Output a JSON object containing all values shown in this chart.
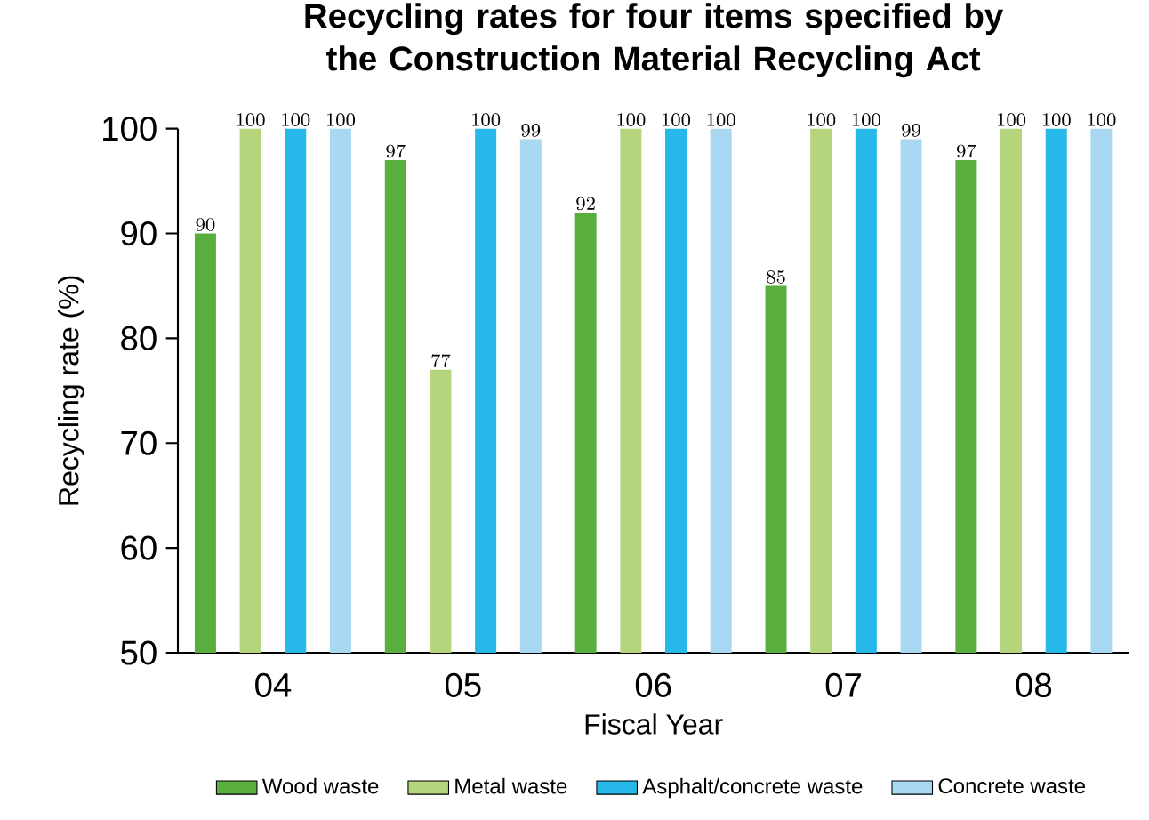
{
  "chart_data": {
    "type": "bar",
    "title": "Recycling rates for four items specified by the Construction Material Recycling Act",
    "xlabel": "Fiscal Year",
    "ylabel": "Recycling rate (%)",
    "categories": [
      "04",
      "05",
      "06",
      "07",
      "08"
    ],
    "series": [
      {
        "name": "Wood waste",
        "color": "#5aae3e",
        "values": [
          90,
          97,
          92,
          85,
          97
        ]
      },
      {
        "name": "Metal waste",
        "color": "#b4d57c",
        "values": [
          100,
          77,
          100,
          100,
          100
        ]
      },
      {
        "name": "Asphalt/concrete waste",
        "color": "#25b8e8",
        "values": [
          100,
          100,
          100,
          100,
          100
        ]
      },
      {
        "name": "Concrete waste",
        "color": "#a9d9f2",
        "values": [
          100,
          99,
          100,
          99,
          100
        ]
      }
    ],
    "ylim": [
      50,
      100
    ],
    "yticks": [
      50,
      60,
      70,
      80,
      90,
      100
    ],
    "data_labels": true,
    "legend": "bottom",
    "grid": false
  }
}
